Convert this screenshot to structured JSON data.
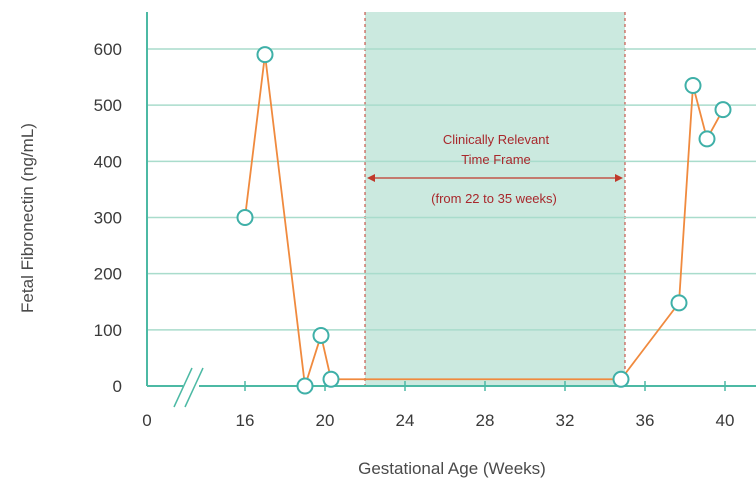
{
  "chart_data": {
    "type": "line",
    "title": "",
    "xlabel": "Gestational Age (Weeks)",
    "ylabel": "Fetal Fibronectin (ng/mL)",
    "xlim": [
      0,
      41
    ],
    "ylim": [
      0,
      660
    ],
    "axis_break": true,
    "grid": "horizontal",
    "x_ticks": [
      0,
      16,
      20,
      24,
      28,
      32,
      36,
      40
    ],
    "y_ticks": [
      0,
      100,
      200,
      300,
      400,
      500,
      600
    ],
    "x_tick_labels": [
      "0",
      "16",
      "20",
      "24",
      "28",
      "32",
      "36",
      "40"
    ],
    "y_tick_labels": [
      "0",
      "100",
      "200",
      "300",
      "400",
      "500",
      "600"
    ],
    "series": [
      {
        "x": [
          16,
          17,
          19,
          19.8,
          20.3,
          34.8,
          37.7,
          38.4,
          39.1,
          39.9
        ],
        "y": [
          300,
          590,
          0,
          90,
          12,
          12,
          148,
          535,
          440,
          492
        ]
      }
    ],
    "highlight_region": {
      "x_start": 22,
      "x_end": 35
    },
    "annotation": {
      "line1": "Clinically Relevant",
      "line2": "Time Frame",
      "line3": "(from 22 to 35 weeks)"
    },
    "colors": {
      "line": "#f08a3e",
      "marker_edge": "#3fb0a8",
      "marker_fill": "#ffffff",
      "grid": "#a9dccc",
      "axis": "#4cb9a4",
      "highlight_fill": "#cbe9df",
      "highlight_border": "#c0392b",
      "annotation_text": "#a8282c"
    }
  }
}
